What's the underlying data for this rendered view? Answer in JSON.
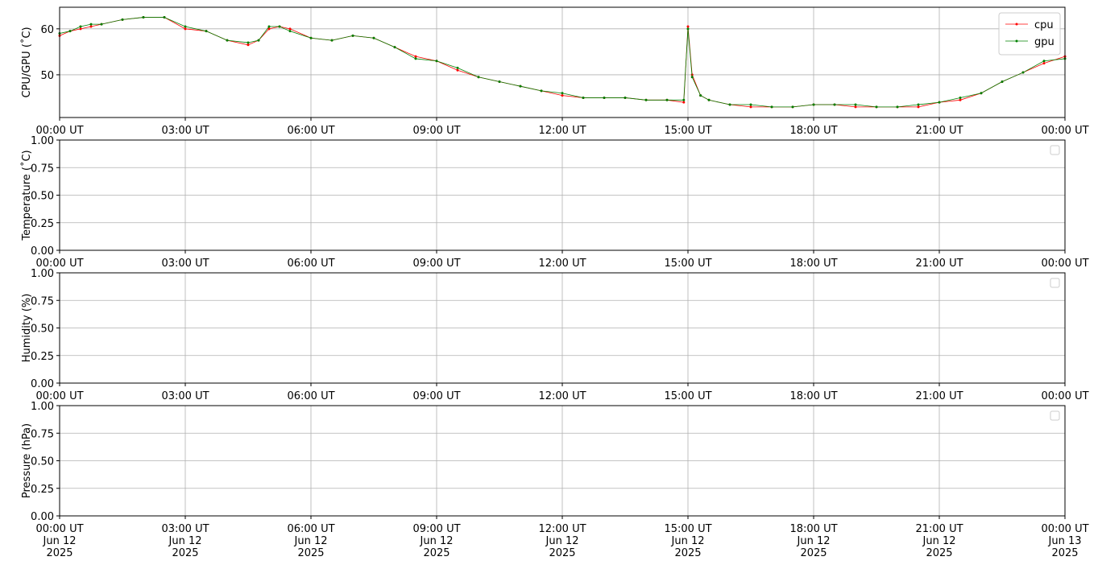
{
  "chart_data": [
    {
      "type": "line",
      "ylabel": "CPU/GPU (˚C)",
      "grid": true,
      "legend": "upper right",
      "xlim": [
        0,
        24
      ],
      "xticks": [
        {
          "value": 0,
          "label": "00:00 UT"
        },
        {
          "value": 3,
          "label": "03:00 UT"
        },
        {
          "value": 6,
          "label": "06:00 UT"
        },
        {
          "value": 9,
          "label": "09:00 UT"
        },
        {
          "value": 12,
          "label": "12:00 UT"
        },
        {
          "value": 15,
          "label": "15:00 UT"
        },
        {
          "value": 18,
          "label": "18:00 UT"
        },
        {
          "value": 21,
          "label": "21:00 UT"
        },
        {
          "value": 24,
          "label": "00:00 UT"
        }
      ],
      "ylim": [
        40.7,
        64.7
      ],
      "yticks": [
        50,
        60
      ],
      "x": [
        0,
        0.25,
        0.5,
        0.75,
        1,
        1.5,
        2,
        2.5,
        3,
        3.5,
        4,
        4.5,
        4.75,
        5,
        5.25,
        5.5,
        6,
        6.5,
        7,
        7.5,
        8,
        8.5,
        9,
        9.5,
        10,
        10.5,
        11,
        11.5,
        12,
        12.5,
        13,
        13.5,
        14,
        14.5,
        14.9,
        15,
        15.1,
        15.3,
        15.5,
        16,
        16.5,
        17,
        17.5,
        18,
        18.5,
        19,
        19.5,
        20,
        20.5,
        21,
        21.5,
        22,
        22.5,
        23,
        23.5,
        24
      ],
      "series": [
        {
          "name": "cpu",
          "color": "#ff0000",
          "values": [
            58.5,
            59.5,
            60,
            60.5,
            61,
            62,
            62.5,
            62.5,
            60,
            59.5,
            57.5,
            56.5,
            57.5,
            60,
            60.5,
            60,
            58,
            57.5,
            58.5,
            58,
            56,
            54,
            53,
            51,
            49.5,
            48.5,
            47.5,
            46.5,
            45.5,
            45,
            45,
            45,
            44.5,
            44.5,
            44,
            60.5,
            50,
            45.5,
            44.5,
            43.5,
            43,
            43,
            43,
            43.5,
            43.5,
            43,
            43,
            43,
            43,
            44,
            44.5,
            46,
            48.5,
            50.5,
            52.5,
            54
          ]
        },
        {
          "name": "gpu",
          "color": "#008000",
          "values": [
            59,
            59.5,
            60.5,
            61,
            61,
            62,
            62.5,
            62.5,
            60.5,
            59.5,
            57.5,
            57,
            57.5,
            60.5,
            60.5,
            59.5,
            58,
            57.5,
            58.5,
            58,
            56,
            53.5,
            53,
            51.5,
            49.5,
            48.5,
            47.5,
            46.5,
            46,
            45,
            45,
            45,
            44.5,
            44.5,
            44.5,
            60,
            49.5,
            45.5,
            44.5,
            43.5,
            43.5,
            43,
            43,
            43.5,
            43.5,
            43.5,
            43,
            43,
            43.5,
            44,
            45,
            46,
            48.5,
            50.5,
            53,
            53.5
          ]
        }
      ]
    },
    {
      "type": "line",
      "ylabel": "Temperature (˚C)",
      "grid": true,
      "legend": "upper right",
      "xlim": [
        0,
        24
      ],
      "xticks": [
        {
          "value": 0,
          "label": "00:00 UT"
        },
        {
          "value": 3,
          "label": "03:00 UT"
        },
        {
          "value": 6,
          "label": "06:00 UT"
        },
        {
          "value": 9,
          "label": "09:00 UT"
        },
        {
          "value": 12,
          "label": "12:00 UT"
        },
        {
          "value": 15,
          "label": "15:00 UT"
        },
        {
          "value": 18,
          "label": "18:00 UT"
        },
        {
          "value": 21,
          "label": "21:00 UT"
        },
        {
          "value": 24,
          "label": "00:00 UT"
        }
      ],
      "ylim": [
        0,
        1
      ],
      "yticks": [
        {
          "value": 0,
          "label": "0.00"
        },
        {
          "value": 0.25,
          "label": "0.25"
        },
        {
          "value": 0.5,
          "label": "0.50"
        },
        {
          "value": 0.75,
          "label": "0.75"
        },
        {
          "value": 1,
          "label": "1.00"
        }
      ],
      "x": [],
      "series": []
    },
    {
      "type": "line",
      "ylabel": "Humidity (%)",
      "grid": true,
      "legend": "upper right",
      "xlim": [
        0,
        24
      ],
      "xticks": [
        {
          "value": 0,
          "label": "00:00 UT"
        },
        {
          "value": 3,
          "label": "03:00 UT"
        },
        {
          "value": 6,
          "label": "06:00 UT"
        },
        {
          "value": 9,
          "label": "09:00 UT"
        },
        {
          "value": 12,
          "label": "12:00 UT"
        },
        {
          "value": 15,
          "label": "15:00 UT"
        },
        {
          "value": 18,
          "label": "18:00 UT"
        },
        {
          "value": 21,
          "label": "21:00 UT"
        },
        {
          "value": 24,
          "label": "00:00 UT"
        }
      ],
      "ylim": [
        0,
        1
      ],
      "yticks": [
        {
          "value": 0,
          "label": "0.00"
        },
        {
          "value": 0.25,
          "label": "0.25"
        },
        {
          "value": 0.5,
          "label": "0.50"
        },
        {
          "value": 0.75,
          "label": "0.75"
        },
        {
          "value": 1,
          "label": "1.00"
        }
      ],
      "x": [],
      "series": []
    },
    {
      "type": "line",
      "ylabel": "Pressure (hPa)",
      "grid": true,
      "legend": "upper right",
      "xlim": [
        0,
        24
      ],
      "xticks": [
        {
          "value": 0,
          "label": "00:00 UT\nJun 12\n2025"
        },
        {
          "value": 3,
          "label": "03:00 UT\nJun 12\n2025"
        },
        {
          "value": 6,
          "label": "06:00 UT\nJun 12\n2025"
        },
        {
          "value": 9,
          "label": "09:00 UT\nJun 12\n2025"
        },
        {
          "value": 12,
          "label": "12:00 UT\nJun 12\n2025"
        },
        {
          "value": 15,
          "label": "15:00 UT\nJun 12\n2025"
        },
        {
          "value": 18,
          "label": "18:00 UT\nJun 12\n2025"
        },
        {
          "value": 21,
          "label": "21:00 UT\nJun 12\n2025"
        },
        {
          "value": 24,
          "label": "00:00 UT\nJun 13\n2025"
        }
      ],
      "ylim": [
        0,
        1
      ],
      "yticks": [
        {
          "value": 0,
          "label": "0.00"
        },
        {
          "value": 0.25,
          "label": "0.25"
        },
        {
          "value": 0.5,
          "label": "0.50"
        },
        {
          "value": 0.75,
          "label": "0.75"
        },
        {
          "value": 1,
          "label": "1.00"
        }
      ],
      "x": [],
      "series": []
    }
  ]
}
